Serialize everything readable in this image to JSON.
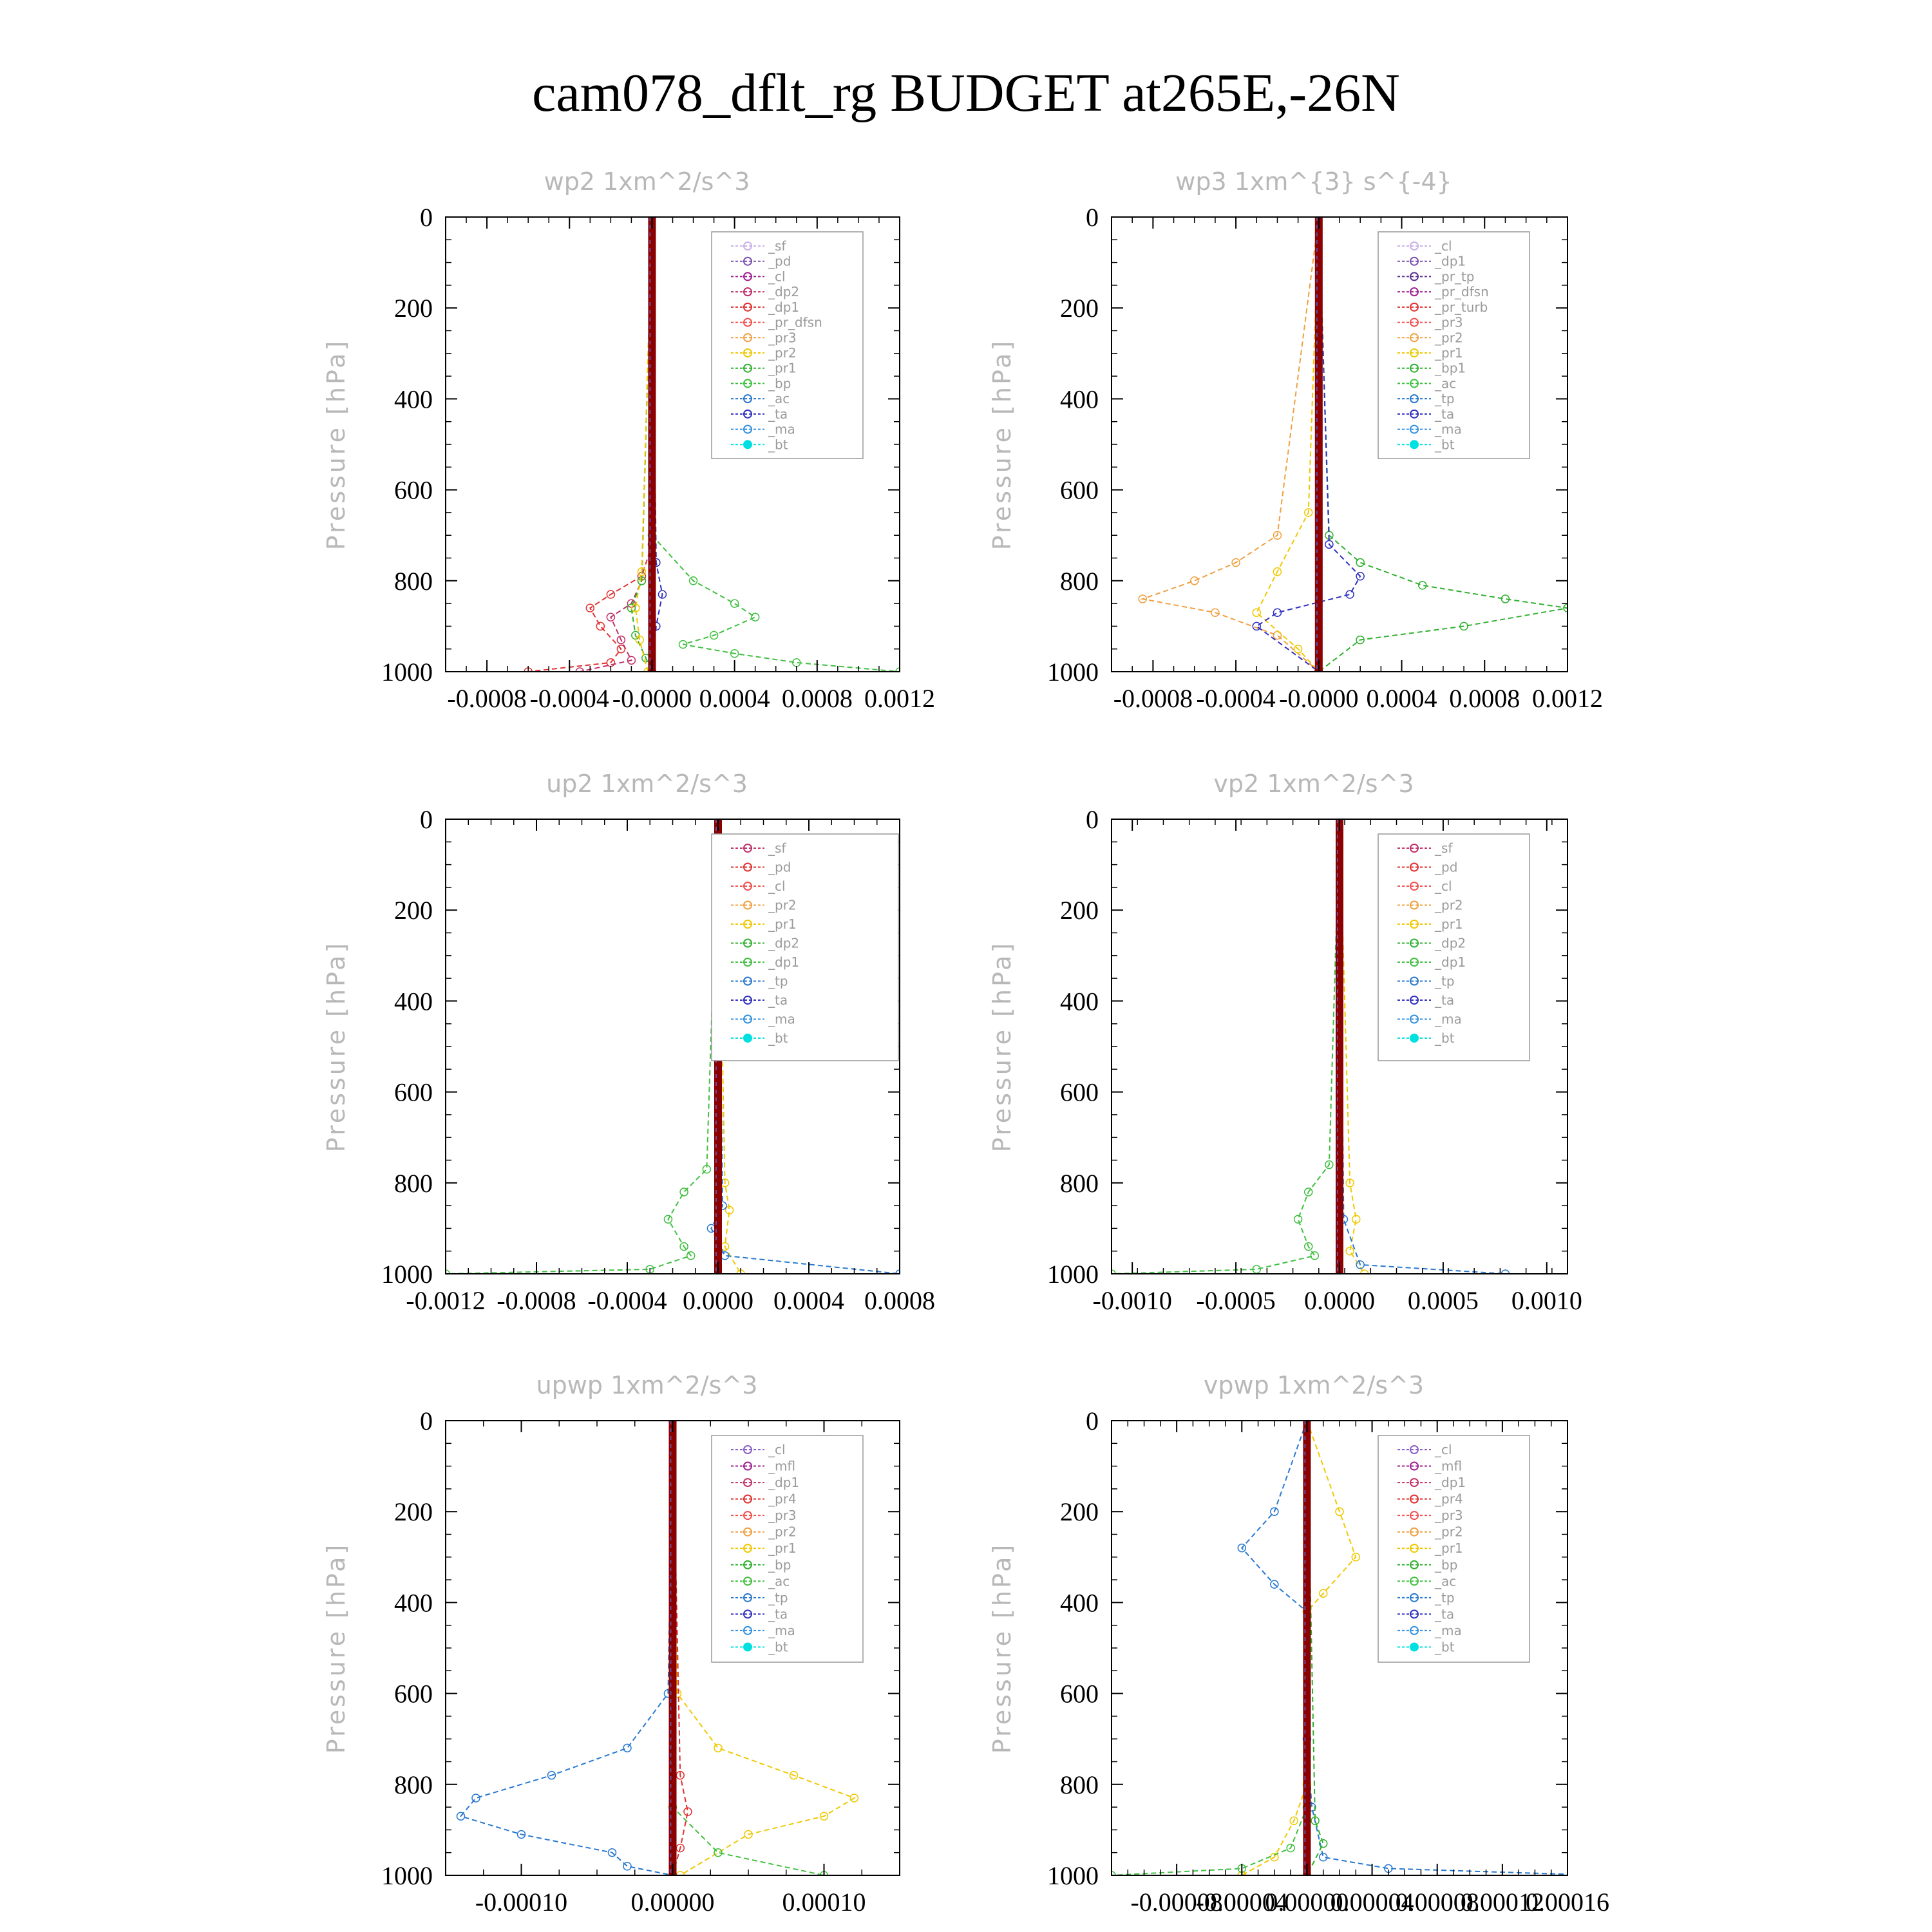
{
  "title": "cam078_dflt_rg  BUDGET at265E,-26N",
  "ylabel": "Pressure [hPa]",
  "colors": {
    "ref_line": "#8b0000",
    "legend_border": "#999999"
  },
  "chart_data": [
    {
      "type": "line",
      "title": "wp2  1xm^2/s^3",
      "xlim": [
        -0.001,
        0.0012
      ],
      "ylim": [
        1000,
        0
      ],
      "xticks": [
        -0.0008,
        -0.0004,
        0,
        0.0004,
        0.0008,
        0.0012
      ],
      "xtick_labels": [
        "-0.0008",
        "-0.0004",
        "-0.0000",
        "0.0004",
        "0.0008",
        "0.0012"
      ],
      "yticks": [
        0,
        200,
        400,
        600,
        800,
        1000
      ],
      "ytick_labels": [
        "0",
        "200",
        "400",
        "600",
        "800",
        "1000"
      ],
      "legend": [
        "_sf",
        "_pd",
        "_cl",
        "_dp2",
        "_dp1",
        "_pr_dfsn",
        "_pr3",
        "_pr2",
        "_pr1",
        "_bp",
        "_ac",
        "_ta",
        "_ma",
        "_bt"
      ],
      "legend_colors": [
        "#c9b2e8",
        "#7a4fb0",
        "#a02090",
        "#c0306a",
        "#e03030",
        "#f05050",
        "#f0a040",
        "#f0c800",
        "#30b030",
        "#40c040",
        "#2878d0",
        "#3030c0",
        "#3090e0",
        "#00e0e0"
      ],
      "series": [
        {
          "name": "_dp1",
          "color": "#e03030",
          "x": [
            0,
            0,
            -5e-05,
            -0.0002,
            -0.0003,
            -0.00025,
            -0.00015,
            -0.0002,
            -0.0006
          ],
          "y": [
            0,
            720,
            790,
            830,
            860,
            900,
            950,
            980,
            1000
          ]
        },
        {
          "name": "_dp2",
          "color": "#c0306a",
          "x": [
            0,
            -5e-05,
            -0.0001,
            -0.0002,
            -0.00015,
            -0.0001,
            -0.00035
          ],
          "y": [
            0,
            800,
            850,
            880,
            930,
            975,
            1000
          ]
        },
        {
          "name": "_ac",
          "color": "#40c040",
          "x": [
            0,
            0,
            0.0002,
            0.0004,
            0.0005,
            0.0003,
            0.00015,
            0.0004,
            0.0007,
            0.0012
          ],
          "y": [
            0,
            700,
            800,
            850,
            880,
            920,
            940,
            960,
            980,
            1000
          ]
        },
        {
          "name": "_bp",
          "color": "#30b030",
          "x": [
            0,
            -5e-05,
            -0.0001,
            -8e-05,
            -3e-05,
            0
          ],
          "y": [
            0,
            800,
            860,
            920,
            970,
            1000
          ]
        },
        {
          "name": "_pr2",
          "color": "#f0c800",
          "x": [
            0,
            -5e-05,
            -8e-05,
            -6e-05,
            -2e-05
          ],
          "y": [
            0,
            780,
            860,
            930,
            1000
          ]
        },
        {
          "name": "_ta",
          "color": "#3030c0",
          "x": [
            0,
            2e-05,
            5e-05,
            2e-05,
            0
          ],
          "y": [
            0,
            760,
            830,
            900,
            1000
          ]
        }
      ]
    },
    {
      "type": "line",
      "title": "wp3  1xm^{3} s^{-4}",
      "xlim": [
        -0.001,
        0.0012
      ],
      "ylim": [
        1000,
        0
      ],
      "xticks": [
        -0.0008,
        -0.0004,
        0,
        0.0004,
        0.0008,
        0.0012
      ],
      "xtick_labels": [
        "-0.0008",
        "-0.0004",
        "-0.0000",
        "0.0004",
        "0.0008",
        "0.0012"
      ],
      "yticks": [
        0,
        200,
        400,
        600,
        800,
        1000
      ],
      "ytick_labels": [
        "0",
        "200",
        "400",
        "600",
        "800",
        "1000"
      ],
      "legend": [
        "_cl",
        "_dp1",
        "_pr_tp",
        "_pr_dfsn",
        "_pr_turb",
        "_pr3",
        "_pr2",
        "_pr1",
        "_bp1",
        "_ac",
        "_tp",
        "_ta",
        "_ma",
        "_bt"
      ],
      "legend_colors": [
        "#c9b2e8",
        "#7a4fb0",
        "#5a3090",
        "#a02090",
        "#e03030",
        "#f05050",
        "#f0a040",
        "#f0c800",
        "#30b030",
        "#40c040",
        "#2878d0",
        "#3030c0",
        "#3090e0",
        "#00e0e0"
      ],
      "series": [
        {
          "name": "_pr2",
          "color": "#f0a040",
          "x": [
            0,
            -0.0002,
            -0.0004,
            -0.0006,
            -0.00085,
            -0.0005,
            -0.0002,
            0
          ],
          "y": [
            0,
            700,
            760,
            800,
            840,
            870,
            920,
            1000
          ]
        },
        {
          "name": "_pr1",
          "color": "#f0c800",
          "x": [
            0,
            -5e-05,
            -0.0002,
            -0.0003,
            -0.0001,
            0
          ],
          "y": [
            0,
            650,
            780,
            870,
            950,
            1000
          ]
        },
        {
          "name": "_bp1",
          "color": "#30b030",
          "x": [
            0,
            5e-05,
            0.0002,
            0.0005,
            0.0009,
            0.0012,
            0.0007,
            0.0002,
            0
          ],
          "y": [
            0,
            700,
            760,
            810,
            840,
            860,
            900,
            930,
            1000
          ]
        },
        {
          "name": "_ta",
          "color": "#3030c0",
          "x": [
            0,
            5e-05,
            0.0002,
            0.00015,
            -0.0002,
            -0.0003,
            0
          ],
          "y": [
            0,
            720,
            790,
            830,
            870,
            900,
            1000
          ]
        }
      ]
    },
    {
      "type": "line",
      "title": "up2  1xm^2/s^3",
      "xlim": [
        -0.0012,
        0.0008
      ],
      "ylim": [
        1000,
        0
      ],
      "xticks": [
        -0.0012,
        -0.0008,
        -0.0004,
        0,
        0.0004,
        0.0008
      ],
      "xtick_labels": [
        "-0.0012",
        "-0.0008",
        "-0.0004",
        "0.0000",
        "0.0004",
        "0.0008"
      ],
      "yticks": [
        0,
        200,
        400,
        600,
        800,
        1000
      ],
      "ytick_labels": [
        "0",
        "200",
        "400",
        "600",
        "800",
        "1000"
      ],
      "legend": [
        "_sf",
        "_pd",
        "_cl",
        "_pr2",
        "_pr1",
        "_dp2",
        "_dp1",
        "_tp",
        "_ta",
        "_ma",
        "_bt"
      ],
      "legend_colors": [
        "#c0306a",
        "#e03030",
        "#f05050",
        "#f0a040",
        "#f0c800",
        "#30b030",
        "#40c040",
        "#2878d0",
        "#3030c0",
        "#3090e0",
        "#00e0e0"
      ],
      "series": [
        {
          "name": "_dp1",
          "color": "#40c040",
          "x": [
            0,
            -5e-05,
            -0.00015,
            -0.00022,
            -0.00015,
            -0.00012,
            -0.0003,
            -0.0012
          ],
          "y": [
            0,
            770,
            820,
            880,
            940,
            960,
            990,
            1000
          ]
        },
        {
          "name": "_pr1",
          "color": "#f0c800",
          "x": [
            0,
            3e-05,
            5e-05,
            3e-05,
            0.0001
          ],
          "y": [
            0,
            800,
            860,
            940,
            1000
          ]
        },
        {
          "name": "_tp",
          "color": "#2878d0",
          "x": [
            0,
            2e-05,
            -3e-05,
            3e-05,
            0.0008
          ],
          "y": [
            0,
            850,
            900,
            960,
            1000
          ]
        }
      ]
    },
    {
      "type": "line",
      "title": "vp2  1xm^2/s^3",
      "xlim": [
        -0.0011,
        0.0011
      ],
      "ylim": [
        1000,
        0
      ],
      "xticks": [
        -0.001,
        -0.0005,
        0,
        0.0005,
        0.001
      ],
      "xtick_labels": [
        "-0.0010",
        "-0.0005",
        "0.0000",
        "0.0005",
        "0.0010"
      ],
      "yticks": [
        0,
        200,
        400,
        600,
        800,
        1000
      ],
      "ytick_labels": [
        "0",
        "200",
        "400",
        "600",
        "800",
        "1000"
      ],
      "legend": [
        "_sf",
        "_pd",
        "_cl",
        "_pr2",
        "_pr1",
        "_dp2",
        "_dp1",
        "_tp",
        "_ta",
        "_ma",
        "_bt"
      ],
      "legend_colors": [
        "#c0306a",
        "#e03030",
        "#f05050",
        "#f0a040",
        "#f0c800",
        "#30b030",
        "#40c040",
        "#2878d0",
        "#3030c0",
        "#3090e0",
        "#00e0e0"
      ],
      "series": [
        {
          "name": "_dp1",
          "color": "#40c040",
          "x": [
            0,
            -5e-05,
            -0.00015,
            -0.0002,
            -0.00015,
            -0.00012,
            -0.0004,
            -0.0011
          ],
          "y": [
            0,
            760,
            820,
            880,
            940,
            960,
            990,
            1000
          ]
        },
        {
          "name": "_pr1",
          "color": "#f0c800",
          "x": [
            0,
            5e-05,
            8e-05,
            5e-05,
            0.00012
          ],
          "y": [
            0,
            800,
            880,
            950,
            1000
          ]
        },
        {
          "name": "_tp",
          "color": "#2878d0",
          "x": [
            0,
            2e-05,
            0.0001,
            0.0008
          ],
          "y": [
            0,
            880,
            980,
            1000
          ]
        }
      ]
    },
    {
      "type": "line",
      "title": "upwp  1xm^2/s^3",
      "xlim": [
        -0.00015,
        0.00015
      ],
      "ylim": [
        1000,
        0
      ],
      "xticks": [
        -0.0001,
        0,
        0.0001
      ],
      "xtick_labels": [
        "-0.00010",
        "0.00000",
        "0.00010"
      ],
      "yticks": [
        0,
        200,
        400,
        600,
        800,
        1000
      ],
      "ytick_labels": [
        "0",
        "200",
        "400",
        "600",
        "800",
        "1000"
      ],
      "legend": [
        "_cl",
        "_mfl",
        "_dp1",
        "_pr4",
        "_pr3",
        "_pr2",
        "_pr1",
        "_bp",
        "_ac",
        "_tp",
        "_ta",
        "_ma",
        "_bt"
      ],
      "legend_colors": [
        "#8a60c8",
        "#a02090",
        "#c0306a",
        "#e03030",
        "#f05050",
        "#f0a040",
        "#f0c800",
        "#30b030",
        "#40c040",
        "#2878d0",
        "#3030c0",
        "#3090e0",
        "#00e0e0"
      ],
      "series": [
        {
          "name": "_tp",
          "color": "#2878d0",
          "x": [
            0,
            -3e-06,
            -3e-05,
            -8e-05,
            -0.00013,
            -0.00014,
            -0.0001,
            -4e-05,
            -3e-05,
            0
          ],
          "y": [
            0,
            600,
            720,
            780,
            830,
            870,
            910,
            950,
            980,
            1000
          ]
        },
        {
          "name": "_pr1",
          "color": "#f0c800",
          "x": [
            0,
            3e-06,
            3e-05,
            8e-05,
            0.00012,
            0.0001,
            5e-05,
            5e-06
          ],
          "y": [
            0,
            600,
            720,
            780,
            830,
            870,
            910,
            1000
          ]
        },
        {
          "name": "_ac",
          "color": "#40c040",
          "x": [
            0,
            0,
            3e-05,
            0.0001
          ],
          "y": [
            0,
            850,
            950,
            1000
          ]
        },
        {
          "name": "_pr4",
          "color": "#e03030",
          "x": [
            0,
            5e-06,
            1e-05,
            5e-06,
            0
          ],
          "y": [
            0,
            780,
            860,
            940,
            1000
          ]
        }
      ]
    },
    {
      "type": "line",
      "title": "vpwp  1xm^2/s^3",
      "xlim": [
        -0.00012,
        0.00016
      ],
      "ylim": [
        1000,
        0
      ],
      "xticks": [
        -8e-05,
        -4e-05,
        0,
        4e-05,
        8e-05,
        0.00012,
        0.00016
      ],
      "xtick_labels": [
        "-0.00008",
        "-0.00004",
        "0.00000",
        "0.00004",
        "0.00008",
        "0.00012",
        "0.00016"
      ],
      "yticks": [
        0,
        200,
        400,
        600,
        800,
        1000
      ],
      "ytick_labels": [
        "0",
        "200",
        "400",
        "600",
        "800",
        "1000"
      ],
      "legend": [
        "_cl",
        "_mfl",
        "_dp1",
        "_pr4",
        "_pr3",
        "_pr2",
        "_pr1",
        "_bp",
        "_ac",
        "_tp",
        "_ta",
        "_ma",
        "_bt"
      ],
      "legend_colors": [
        "#8a60c8",
        "#a02090",
        "#c0306a",
        "#e03030",
        "#f05050",
        "#f0a040",
        "#f0c800",
        "#30b030",
        "#40c040",
        "#2878d0",
        "#3030c0",
        "#3090e0",
        "#00e0e0"
      ],
      "series": [
        {
          "name": "_tp",
          "color": "#2878d0",
          "x": [
            0,
            -2e-05,
            -4e-05,
            -2e-05,
            0,
            0,
            3e-06,
            1e-05,
            5e-05,
            0.00018
          ],
          "y": [
            0,
            200,
            280,
            360,
            420,
            700,
            850,
            960,
            985,
            1000
          ]
        },
        {
          "name": "_pr1",
          "color": "#f0c800",
          "x": [
            0,
            2e-05,
            3e-05,
            1e-05,
            0,
            0,
            -8e-06,
            -2e-05,
            -4e-05
          ],
          "y": [
            0,
            200,
            300,
            380,
            420,
            800,
            880,
            960,
            1000
          ]
        },
        {
          "name": "_ac",
          "color": "#40c040",
          "x": [
            0,
            0,
            -1e-05,
            -4e-05,
            -0.00012
          ],
          "y": [
            0,
            850,
            940,
            985,
            1000
          ]
        },
        {
          "name": "_bp",
          "color": "#30b030",
          "x": [
            0,
            5e-06,
            1e-05,
            0
          ],
          "y": [
            0,
            880,
            930,
            1000
          ]
        }
      ]
    }
  ]
}
